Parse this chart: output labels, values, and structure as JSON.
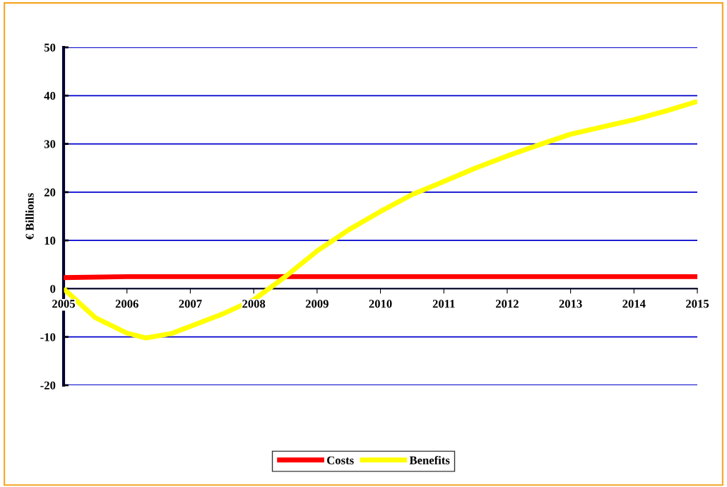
{
  "chart_data": {
    "type": "line",
    "ylabel": "€ Billions",
    "xlim": [
      2005,
      2015
    ],
    "xticks": [
      2005,
      2006,
      2007,
      2008,
      2009,
      2010,
      2011,
      2012,
      2013,
      2014,
      2015
    ],
    "ylim": [
      -20,
      50
    ],
    "yticks": [
      -20,
      -10,
      0,
      10,
      20,
      30,
      40,
      50
    ],
    "grid": "y",
    "legend": "bottom",
    "marker": "none",
    "line_style": "solid",
    "series": [
      {
        "name": "Costs",
        "color": "#ff0000",
        "x": [
          2005,
          2006,
          2007,
          2008,
          2009,
          2010,
          2011,
          2012,
          2013,
          2014,
          2015
        ],
        "values": [
          2.3,
          2.5,
          2.5,
          2.5,
          2.5,
          2.5,
          2.5,
          2.5,
          2.5,
          2.5,
          2.5
        ]
      },
      {
        "name": "Benefits",
        "color": "#ffff00",
        "x": [
          2005,
          2005.5,
          2006,
          2006.3,
          2006.7,
          2007,
          2007.5,
          2008,
          2008.5,
          2009,
          2009.5,
          2010,
          2010.5,
          2011,
          2011.5,
          2012,
          2012.5,
          2013,
          2013.5,
          2014,
          2014.5,
          2015
        ],
        "values": [
          0,
          -6,
          -9.2,
          -10.2,
          -9.3,
          -7.8,
          -5.3,
          -2.3,
          2.5,
          7.8,
          12.2,
          16,
          19.5,
          22.2,
          25,
          27.5,
          29.8,
          32,
          33.5,
          35,
          36.8,
          38.8
        ]
      }
    ]
  }
}
